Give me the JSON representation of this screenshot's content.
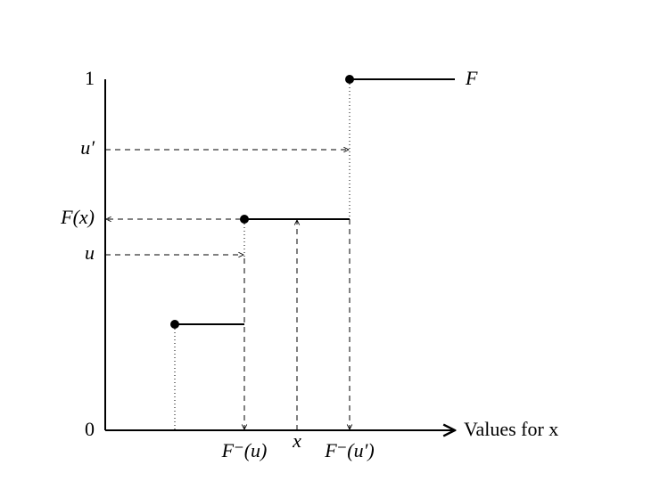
{
  "y_axis": {
    "top_label": "1",
    "bottom_label": "0",
    "labels": [
      "u′",
      "F(x)",
      "u"
    ]
  },
  "x_axis": {
    "title": "Values for x",
    "labels": [
      "F⁻(u)",
      "x",
      "F⁻(u′)"
    ]
  },
  "curve_label": "F"
}
